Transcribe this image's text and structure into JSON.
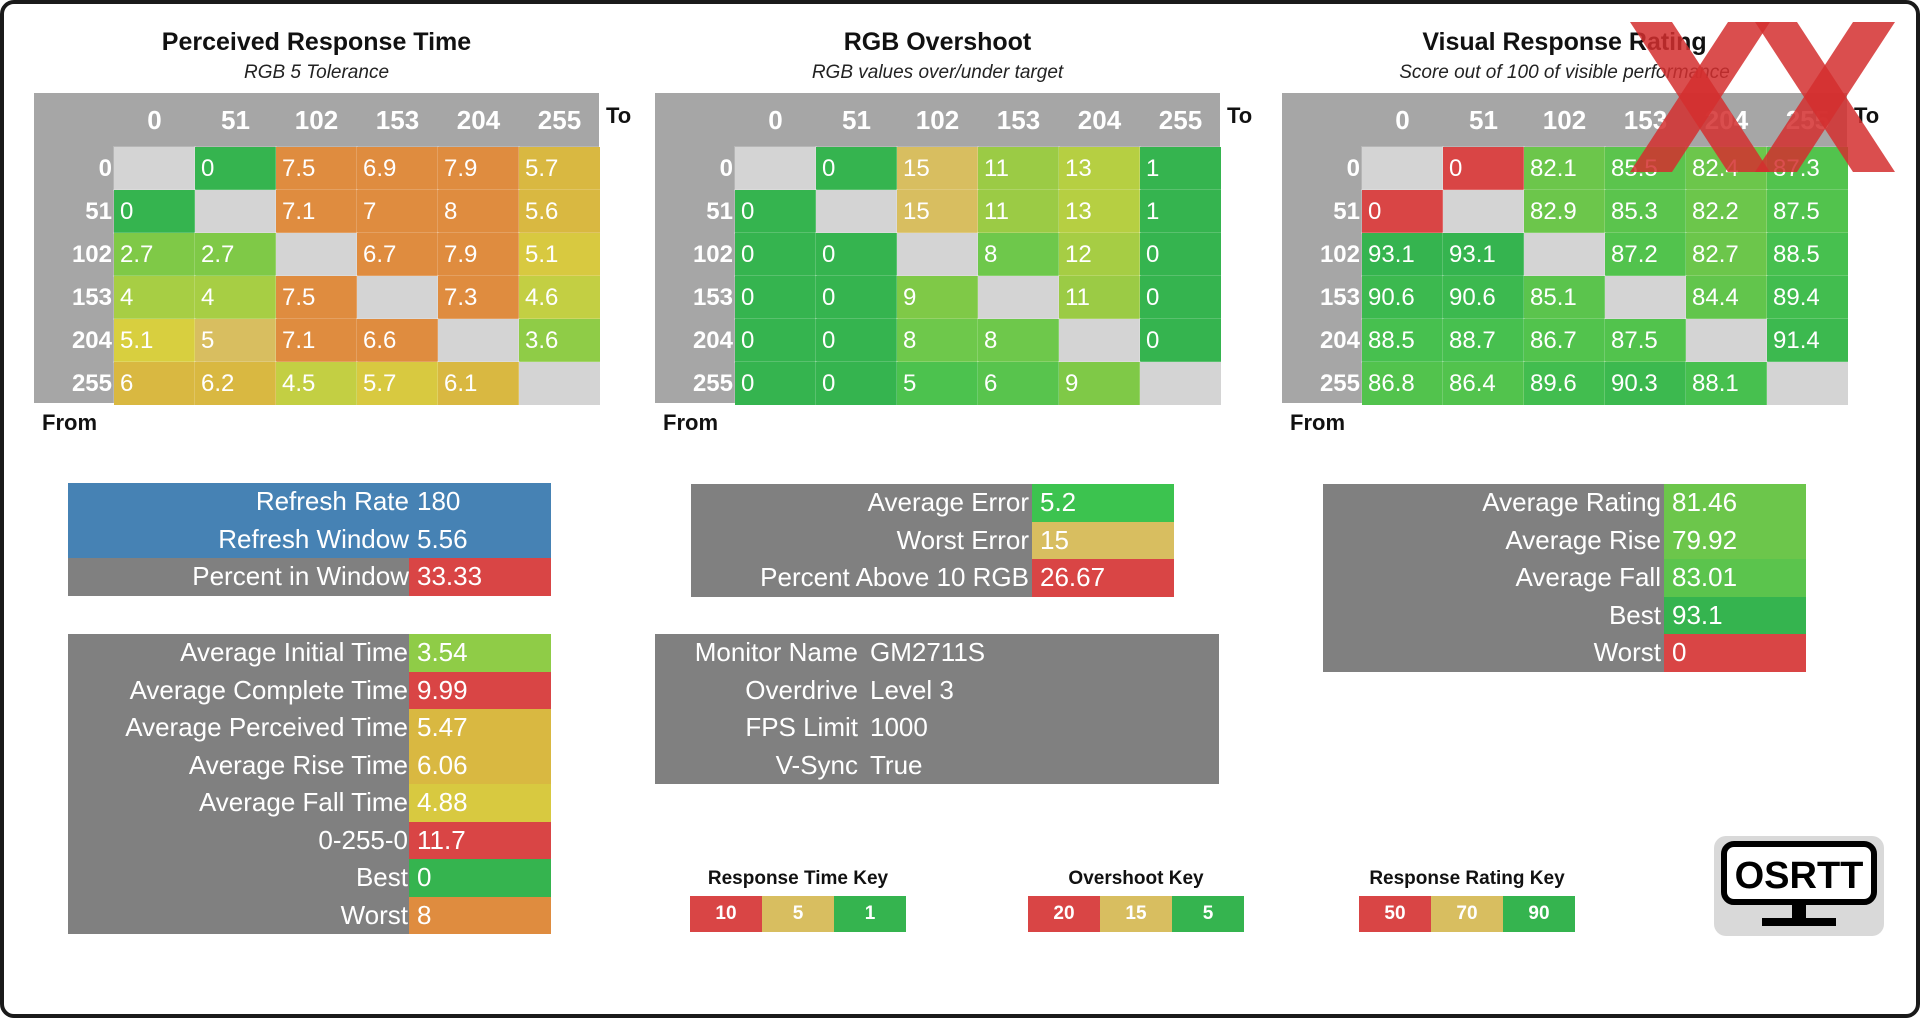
{
  "chart_data": [
    {
      "type": "heatmap",
      "title": "Perceived Response Time",
      "subtitle": "RGB 5 Tolerance",
      "xlabel": "To",
      "ylabel": "From",
      "categories": [
        "0",
        "51",
        "102",
        "153",
        "204",
        "255"
      ],
      "values": [
        [
          null,
          "0",
          "7.5",
          "6.9",
          "7.9",
          "5.7"
        ],
        [
          "0",
          null,
          "7.1",
          "7",
          "8",
          "5.6"
        ],
        [
          "2.7",
          "2.7",
          null,
          "6.7",
          "7.9",
          "5.1"
        ],
        [
          "4",
          "4",
          "7.5",
          null,
          "7.3",
          "4.6"
        ],
        [
          "5.1",
          "5",
          "7.1",
          "6.6",
          null,
          "3.6"
        ],
        [
          "6",
          "6.2",
          "4.5",
          "5.7",
          "6.1",
          null
        ]
      ],
      "colors": [
        [
          "#d4d4d4",
          "#35b44f",
          "#df8c3f",
          "#df8c3f",
          "#df8c3f",
          "#d9b841"
        ],
        [
          "#35b44f",
          "#d4d4d4",
          "#df8c3f",
          "#df8c3f",
          "#df8c3f",
          "#d9b841"
        ],
        [
          "#7fc947",
          "#7fc947",
          "#d4d4d4",
          "#df8c3f",
          "#df8c3f",
          "#d8c940"
        ],
        [
          "#a7ce44",
          "#a7ce44",
          "#df8c3f",
          "#d4d4d4",
          "#df8c3f",
          "#c3cf43"
        ],
        [
          "#d8cf3f",
          "#d8be60",
          "#df8c3f",
          "#df8c3f",
          "#d4d4d4",
          "#8fcc47"
        ],
        [
          "#d9b841",
          "#d9b841",
          "#c3cf43",
          "#d8c940",
          "#d9b841",
          "#d4d4d4"
        ]
      ]
    },
    {
      "type": "heatmap",
      "title": "RGB Overshoot",
      "subtitle": "RGB values over/under target",
      "xlabel": "To",
      "ylabel": "From",
      "categories": [
        "0",
        "51",
        "102",
        "153",
        "204",
        "255"
      ],
      "values": [
        [
          null,
          "0",
          "15",
          "11",
          "13",
          "1"
        ],
        [
          "0",
          null,
          "15",
          "11",
          "13",
          "1"
        ],
        [
          "0",
          "0",
          null,
          "8",
          "12",
          "0"
        ],
        [
          "0",
          "0",
          "9",
          null,
          "11",
          "0"
        ],
        [
          "0",
          "0",
          "8",
          "8",
          null,
          "0"
        ],
        [
          "0",
          "0",
          "5",
          "6",
          "9",
          null
        ]
      ],
      "colors": [
        [
          "#d4d4d4",
          "#35b44f",
          "#d8be60",
          "#9bcb45",
          "#b6cf42",
          "#35b44f"
        ],
        [
          "#35b44f",
          "#d4d4d4",
          "#d8be60",
          "#9bcb45",
          "#b6cf42",
          "#35b44f"
        ],
        [
          "#35b44f",
          "#35b44f",
          "#d4d4d4",
          "#6ec84b",
          "#a6cd44",
          "#35b44f"
        ],
        [
          "#35b44f",
          "#35b44f",
          "#7fc947",
          "#d4d4d4",
          "#9bcb45",
          "#35b44f"
        ],
        [
          "#35b44f",
          "#35b44f",
          "#6ec84b",
          "#6ec84b",
          "#d4d4d4",
          "#35b44f"
        ],
        [
          "#35b44f",
          "#35b44f",
          "#4cc24e",
          "#58c44d",
          "#7fc947",
          "#d4d4d4"
        ]
      ]
    },
    {
      "type": "heatmap",
      "title": "Visual Response Rating",
      "subtitle": "Score out of 100 of visible performance",
      "xlabel": "To",
      "ylabel": "From",
      "categories": [
        "0",
        "51",
        "102",
        "153",
        "204",
        "255"
      ],
      "values": [
        [
          null,
          "0",
          "82.1",
          "85.5",
          "82.4",
          "87.3"
        ],
        [
          "0",
          null,
          "82.9",
          "85.3",
          "82.2",
          "87.5"
        ],
        [
          "93.1",
          "93.1",
          null,
          "87.2",
          "82.7",
          "88.5"
        ],
        [
          "90.6",
          "90.6",
          "85.1",
          null,
          "84.4",
          "89.4"
        ],
        [
          "88.5",
          "88.7",
          "86.7",
          "87.5",
          null,
          "91.4"
        ],
        [
          "86.8",
          "86.4",
          "89.6",
          "90.3",
          "88.1",
          null
        ]
      ],
      "colors": [
        [
          "#d4d4d4",
          "#d94545",
          "#6cc64b",
          "#5bc44d",
          "#6cc64b",
          "#52c34d"
        ],
        [
          "#d94545",
          "#d4d4d4",
          "#6cc64b",
          "#5bc44d",
          "#6cc64b",
          "#52c34d"
        ],
        [
          "#35b44f",
          "#35b44f",
          "#d4d4d4",
          "#52c34d",
          "#6cc64b",
          "#47c04f"
        ],
        [
          "#3cb94f",
          "#3cb94f",
          "#5bc44d",
          "#d4d4d4",
          "#62c54c",
          "#42bd4f"
        ],
        [
          "#47c04f",
          "#47c04f",
          "#52c34d",
          "#52c34d",
          "#d4d4d4",
          "#3cb94f"
        ],
        [
          "#52c34d",
          "#52c34d",
          "#42bd4f",
          "#3cb94f",
          "#47c04f",
          "#d4d4d4"
        ]
      ]
    }
  ],
  "refresh_table": [
    {
      "label": "Refresh Rate",
      "value": "180",
      "label_bg": "#4682b4",
      "value_bg": "#4682b4"
    },
    {
      "label": "Refresh Window",
      "value": "5.56",
      "label_bg": "#4682b4",
      "value_bg": "#4682b4"
    },
    {
      "label": "Percent in Window",
      "value": "33.33",
      "label_bg": "#808080",
      "value_bg": "#d94545"
    }
  ],
  "time_table": [
    {
      "label": "Average Initial Time",
      "value": "3.54",
      "value_bg": "#8fcc47"
    },
    {
      "label": "Average Complete Time",
      "value": "9.99",
      "value_bg": "#d94545"
    },
    {
      "label": "Average Perceived Time",
      "value": "5.47",
      "value_bg": "#d9b841"
    },
    {
      "label": "Average Rise Time",
      "value": "6.06",
      "value_bg": "#d9b841"
    },
    {
      "label": "Average Fall Time",
      "value": "4.88",
      "value_bg": "#d8c940"
    },
    {
      "label": "0-255-0",
      "value": "11.7",
      "value_bg": "#d94545"
    },
    {
      "label": "Best",
      "value": "0",
      "value_bg": "#35b44f"
    },
    {
      "label": "Worst",
      "value": "8",
      "value_bg": "#df8c3f"
    }
  ],
  "error_table": [
    {
      "label": "Average Error",
      "value": "5.2",
      "value_bg": "#3cc34f"
    },
    {
      "label": "Worst Error",
      "value": "15",
      "value_bg": "#d8be60"
    },
    {
      "label": "Percent Above 10 RGB",
      "value": "26.67",
      "value_bg": "#d94545"
    }
  ],
  "monitor_table": [
    {
      "label": "Monitor Name",
      "value": "GM2711S"
    },
    {
      "label": "Overdrive",
      "value": "Level 3"
    },
    {
      "label": "FPS Limit",
      "value": "1000"
    },
    {
      "label": "V-Sync",
      "value": "True"
    }
  ],
  "rating_table": [
    {
      "label": "Average Rating",
      "value": "81.46",
      "value_bg": "#6cc64b"
    },
    {
      "label": "Average Rise",
      "value": "79.92",
      "value_bg": "#6cc64b"
    },
    {
      "label": "Average Fall",
      "value": "83.01",
      "value_bg": "#5bc44d"
    },
    {
      "label": "Best",
      "value": "93.1",
      "value_bg": "#35b44f"
    },
    {
      "label": "Worst",
      "value": "0",
      "value_bg": "#d94545"
    }
  ],
  "keys": [
    {
      "title": "Response Time Key",
      "items": [
        {
          "label": "10",
          "bg": "#d94545"
        },
        {
          "label": "5",
          "bg": "#d8be60"
        },
        {
          "label": "1",
          "bg": "#35b44f"
        }
      ]
    },
    {
      "title": "Overshoot Key",
      "items": [
        {
          "label": "20",
          "bg": "#d94545"
        },
        {
          "label": "15",
          "bg": "#d8be60"
        },
        {
          "label": "5",
          "bg": "#35b44f"
        }
      ]
    },
    {
      "title": "Response Rating Key",
      "items": [
        {
          "label": "50",
          "bg": "#d94545"
        },
        {
          "label": "70",
          "bg": "#d8be60"
        },
        {
          "label": "90",
          "bg": "#35b44f"
        }
      ]
    }
  ],
  "logo": {
    "text": "OSRTT"
  },
  "overlay": {
    "icon": "red-x-mark-icon",
    "color": "#d32f2f"
  }
}
